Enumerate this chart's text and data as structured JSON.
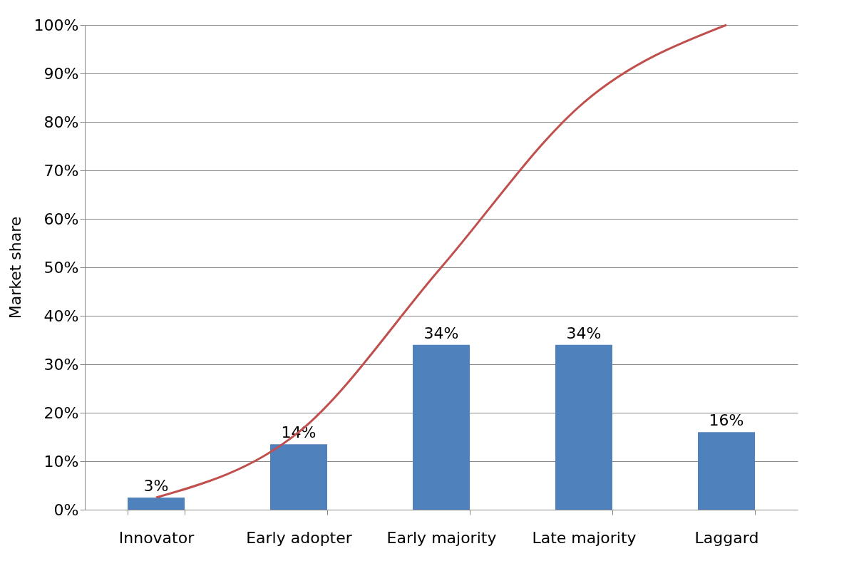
{
  "chart_data": {
    "type": "bar",
    "ylabel": "Market share",
    "categories": [
      "Innovator",
      "Early adopter",
      "Early majority",
      "Late majority",
      "Laggard"
    ],
    "series": [
      {
        "color": "#4f81bd",
        "values": [
          2.5,
          13.5,
          34,
          34,
          16
        ],
        "value_labels": [
          "3%",
          "14%",
          "34%",
          "34%",
          "16%"
        ]
      },
      {
        "type": "line",
        "color": "#c0504d",
        "values": [
          2.5,
          16,
          50,
          84,
          100
        ],
        "marker": "none",
        "line_style": "solid"
      }
    ],
    "ylim": [
      0,
      100
    ],
    "yticks": [
      {
        "value": 0,
        "label": "0%"
      },
      {
        "value": 10,
        "label": "10%"
      },
      {
        "value": 20,
        "label": "20%"
      },
      {
        "value": 30,
        "label": "30%"
      },
      {
        "value": 40,
        "label": "40%"
      },
      {
        "value": 50,
        "label": "50%"
      },
      {
        "value": 60,
        "label": "60%"
      },
      {
        "value": 70,
        "label": "70%"
      },
      {
        "value": 80,
        "label": "80%"
      },
      {
        "value": 90,
        "label": "90%"
      },
      {
        "value": 100,
        "label": "100%"
      }
    ],
    "grid": "y"
  }
}
